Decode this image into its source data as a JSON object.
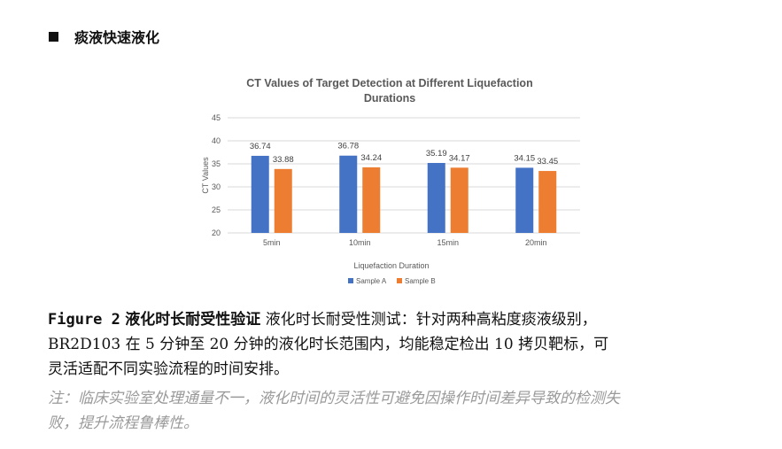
{
  "heading": {
    "bullet_icon": "black-square-icon",
    "text": "痰液快速液化"
  },
  "chart_data": {
    "type": "bar",
    "title_line1": "CT Values of Target Detection at Different Liquefaction",
    "title_line2": "Durations",
    "xlabel": "Liquefaction Duration",
    "ylabel": "CT Values",
    "categories": [
      "5min",
      "10min",
      "15min",
      "20min"
    ],
    "y_ticks": [
      "45",
      "40",
      "35",
      "30",
      "25",
      "20"
    ],
    "ylim": [
      20,
      45
    ],
    "grid": true,
    "legend_position": "bottom",
    "series": [
      {
        "name": "Sample A",
        "color": "#4472C4",
        "values": [
          36.74,
          36.78,
          35.19,
          34.15
        ],
        "labels": [
          "36.74",
          "36.78",
          "35.19",
          "34.15"
        ]
      },
      {
        "name": "Sample B",
        "color": "#ED7D31",
        "values": [
          33.88,
          34.24,
          34.17,
          33.45
        ],
        "labels": [
          "33.88",
          "34.24",
          "34.17",
          "33.45"
        ]
      }
    ]
  },
  "caption": {
    "label": "Figure 2",
    "title": "液化时长耐受性验证",
    "body_line1": "液化时长耐受性测试：针对两种高粘度痰液级别，",
    "body_line2": "BR2D103 在 5 分钟至 20 分钟的液化时长范围内，均能稳定检出 10 拷贝靶标，可",
    "body_line3": "灵活适配不同实验流程的时间安排。"
  },
  "note": {
    "line1": "注：临床实验室处理通量不一，液化时间的灵活性可避免因操作时间差异导致的检测失",
    "line2": "败，提升流程鲁棒性。"
  }
}
